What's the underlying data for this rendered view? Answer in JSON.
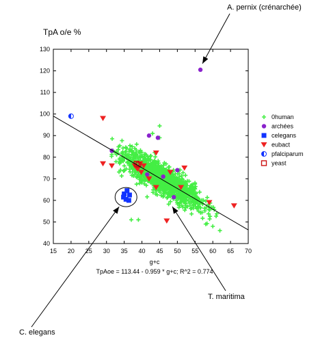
{
  "chart_data": {
    "type": "scatter",
    "ylabel": "TpA o/e %",
    "xlabel": "g+c",
    "xlim": [
      15,
      70
    ],
    "ylim": [
      40,
      130
    ],
    "x_ticks": [
      15,
      20,
      25,
      30,
      35,
      40,
      45,
      50,
      55,
      60,
      65,
      70
    ],
    "y_ticks": [
      40,
      50,
      60,
      70,
      80,
      90,
      100,
      110,
      120,
      130
    ],
    "grid": false,
    "legend_position": "right",
    "equation": "TpAoe = 113.44 - 0.959 * g+c; R^2 = 0.774",
    "regression": {
      "intercept": 113.44,
      "slope": -0.959,
      "x_range": [
        15,
        70
      ]
    },
    "series": [
      {
        "name": "0human",
        "marker": "plus",
        "color": "#44ee44",
        "cloud": {
          "x_center": 46,
          "x_spread": 5.5,
          "residual_spread": 3.2,
          "x_min": 31,
          "x_max": 62,
          "count": 1400
        },
        "points": [
          [
            37,
            51
          ],
          [
            39,
            51
          ],
          [
            43,
            91
          ],
          [
            45,
            94.5
          ],
          [
            45,
            89
          ],
          [
            38.5,
            86
          ],
          [
            46,
            66
          ],
          [
            52,
            64
          ],
          [
            62,
            46
          ],
          [
            60,
            48
          ],
          [
            58,
            49
          ],
          [
            56,
            55
          ]
        ]
      },
      {
        "name": "archées",
        "marker": "circle",
        "color": "#8a22cc",
        "points": [
          [
            56.5,
            120.5
          ],
          [
            31.5,
            83
          ],
          [
            42,
            90
          ],
          [
            44.5,
            89
          ],
          [
            49,
            61.5
          ],
          [
            50,
            74
          ],
          [
            41.5,
            72
          ],
          [
            46,
            71
          ]
        ]
      },
      {
        "name": "celegans",
        "marker": "square",
        "color": "#1133ff",
        "points": [
          [
            35,
            63
          ],
          [
            35.8,
            64.5
          ],
          [
            36.5,
            62.5
          ],
          [
            35.5,
            60.5
          ],
          [
            36.3,
            60
          ],
          [
            34.8,
            61.5
          ]
        ]
      },
      {
        "name": "eubact",
        "marker": "triangle-down",
        "color": "#ee2222",
        "points": [
          [
            29,
            98
          ],
          [
            29,
            77
          ],
          [
            31.5,
            76
          ],
          [
            38,
            76
          ],
          [
            38.5,
            75
          ],
          [
            39.5,
            77
          ],
          [
            40.5,
            76
          ],
          [
            38.8,
            74.5
          ],
          [
            39.8,
            73
          ],
          [
            42,
            70
          ],
          [
            44,
            82
          ],
          [
            48,
            73
          ],
          [
            52,
            75
          ],
          [
            44,
            66
          ],
          [
            51,
            66
          ],
          [
            59,
            59
          ],
          [
            66,
            57.5
          ],
          [
            47,
            50.5
          ]
        ]
      },
      {
        "name": "pfalciparum",
        "marker": "half-circle",
        "color": "#1133ff",
        "points": [
          [
            20,
            99
          ]
        ]
      },
      {
        "name": "yeast",
        "marker": "open-square",
        "color": "#cc1111",
        "points": [
          [
            38.5,
            77
          ],
          [
            39,
            76.5
          ]
        ]
      }
    ],
    "annotations": [
      {
        "text": "A. pernix (crénarchée)",
        "target": [
          56.5,
          120.5
        ]
      },
      {
        "text": "C. elegans",
        "target": [
          35.5,
          61.5
        ]
      },
      {
        "text": "T. maritima",
        "target": [
          48,
          59
        ]
      }
    ]
  }
}
